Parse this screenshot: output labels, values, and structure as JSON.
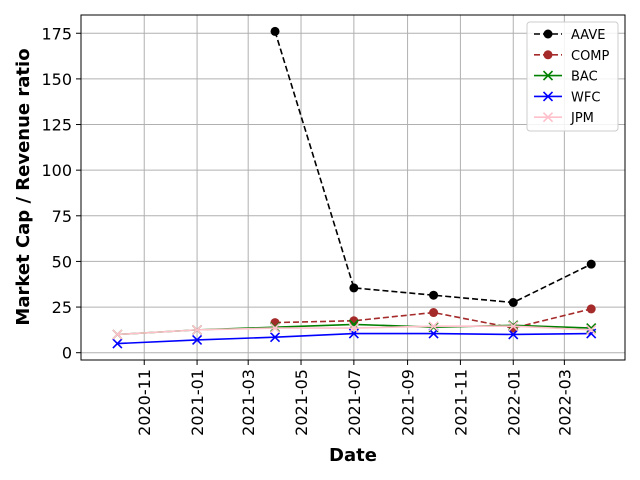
{
  "chart_data": {
    "type": "line",
    "xlabel": "Date",
    "ylabel": "Market Cap / Revenue ratio",
    "x_type": "date",
    "xlim": [
      "2020-08-20",
      "2022-05-10"
    ],
    "ylim": [
      -4,
      185
    ],
    "x_ticks": [
      "2020-11",
      "2021-01",
      "2021-03",
      "2021-05",
      "2021-07",
      "2021-09",
      "2021-11",
      "2022-01",
      "2022-03"
    ],
    "y_ticks": [
      0,
      25,
      50,
      75,
      100,
      125,
      150,
      175
    ],
    "grid": true,
    "legend_position": "top-right",
    "series": [
      {
        "name": "AAVE",
        "color": "#000000",
        "linestyle": "dashed",
        "marker": "circle",
        "x": [
          "2021-04-01",
          "2021-07-01",
          "2021-10-01",
          "2022-01-01",
          "2022-04-01"
        ],
        "y": [
          176,
          35.5,
          31.5,
          27.5,
          48.5
        ]
      },
      {
        "name": "COMP",
        "color": "#a52a2a",
        "linestyle": "dashed",
        "marker": "circle",
        "x": [
          "2021-04-01",
          "2021-07-01",
          "2021-10-01",
          "2022-01-01",
          "2022-04-01"
        ],
        "y": [
          16.5,
          17.5,
          22,
          13.5,
          24
        ]
      },
      {
        "name": "BAC",
        "color": "#008000",
        "linestyle": "solid",
        "marker": "x",
        "x": [
          "2020-10-01",
          "2021-01-01",
          "2021-04-01",
          "2021-07-01",
          "2021-10-01",
          "2022-01-01",
          "2022-04-01"
        ],
        "y": [
          10,
          12.5,
          14,
          15.5,
          14,
          15,
          13.5
        ]
      },
      {
        "name": "WFC",
        "color": "#0000ff",
        "linestyle": "solid",
        "marker": "x",
        "x": [
          "2020-10-01",
          "2021-01-01",
          "2021-04-01",
          "2021-07-01",
          "2021-10-01",
          "2022-01-01",
          "2022-04-01"
        ],
        "y": [
          5,
          7,
          8.5,
          10.5,
          10.5,
          10,
          10.5
        ]
      },
      {
        "name": "JPM",
        "color": "#ffc0cb",
        "linestyle": "solid",
        "marker": "x",
        "x": [
          "2020-10-01",
          "2021-01-01",
          "2021-04-01",
          "2021-07-01",
          "2021-10-01",
          "2022-01-01",
          "2022-04-01"
        ],
        "y": [
          10,
          12.5,
          13.5,
          13.5,
          14.5,
          14.5,
          12.5
        ]
      }
    ]
  }
}
